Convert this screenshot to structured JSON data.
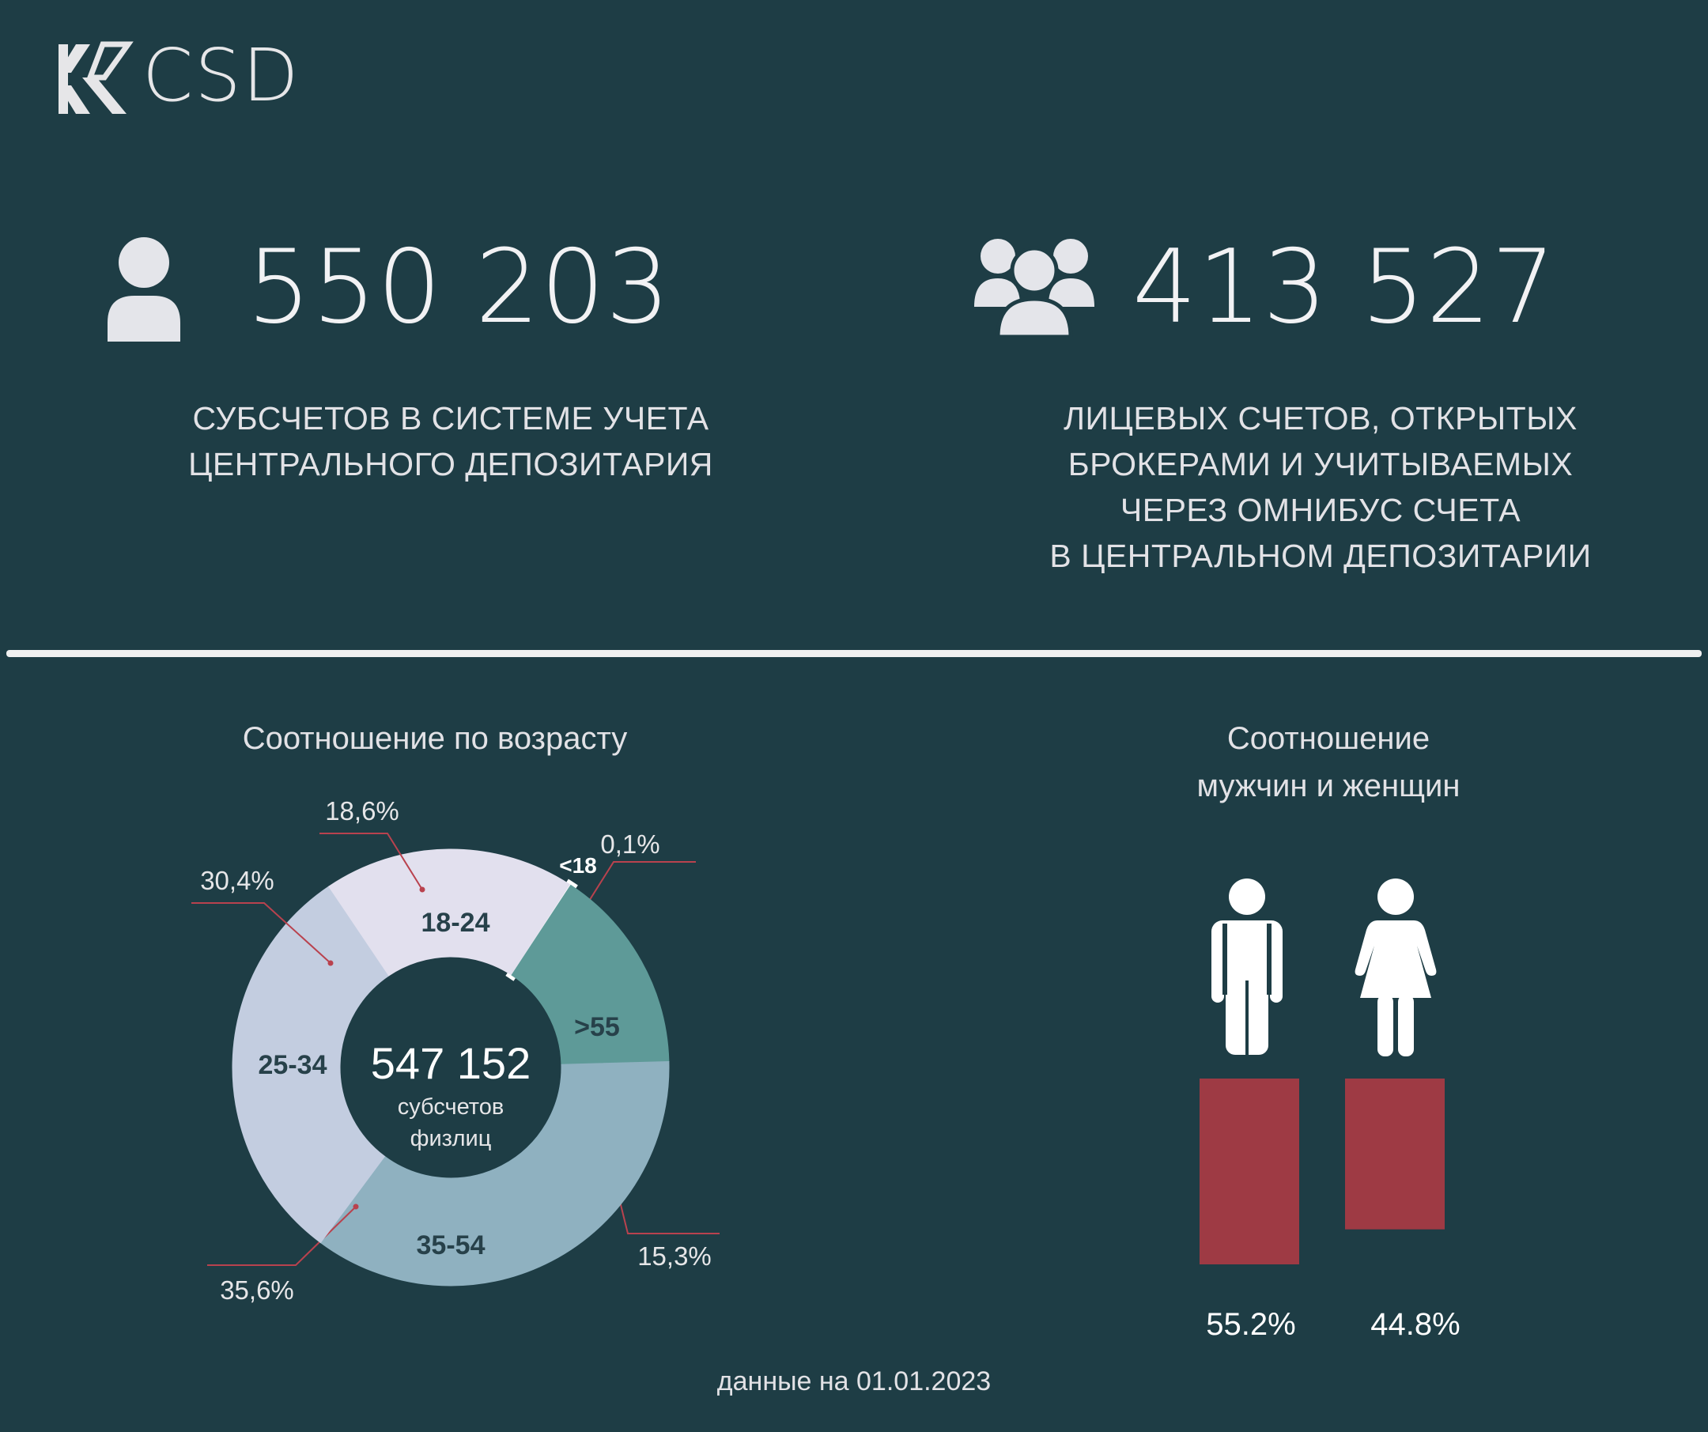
{
  "logo": {
    "text": "CSD"
  },
  "stats": [
    {
      "value": "550 203",
      "description_lines": [
        "СУБСЧЕТОВ В СИСТЕМЕ УЧЕТА",
        "ЦЕНТРАЛЬНОГО ДЕПОЗИТАРИЯ"
      ],
      "icon": "person-icon"
    },
    {
      "value": "413 527",
      "description_lines": [
        "ЛИЦЕВЫХ СЧЕТОВ, ОТКРЫТЫХ",
        "БРОКЕРАМИ И УЧИТЫВАЕМЫХ",
        "ЧЕРЕЗ ОМНИБУС СЧЕТА",
        "В ЦЕНТРАЛЬНОМ ДЕПОЗИТАРИИ"
      ],
      "icon": "group-icon"
    }
  ],
  "footnote": "данные на 01.01.2023",
  "colors": {
    "background": "#1e3d45",
    "bar": "#9e3a44"
  },
  "chart_data": [
    {
      "type": "pie",
      "title": "Соотношение по возрасту",
      "center_value": "547 152",
      "center_label_lines": [
        "субсчетов",
        "физлиц"
      ],
      "slices": [
        {
          "category": "<18",
          "value": 0.1,
          "label": "0,1%",
          "color": "#ffffff"
        },
        {
          "category": ">55",
          "value": 15.3,
          "label": "15,3%",
          "color": "#5e9a98"
        },
        {
          "category": "35-54",
          "value": 35.6,
          "label": "35,6%",
          "color": "#8fb1c0"
        },
        {
          "category": "25-34",
          "value": 30.4,
          "label": "30,4%",
          "color": "#c3cde0"
        },
        {
          "category": "18-24",
          "value": 18.6,
          "label": "18,6%",
          "color": "#e2e0ee"
        }
      ]
    },
    {
      "type": "bar",
      "title_lines": [
        "Соотношение",
        "мужчин и женщин"
      ],
      "categories": [
        "male-icon",
        "female-icon"
      ],
      "values": [
        55.2,
        44.8
      ],
      "labels": [
        "55.2%",
        "44.8%"
      ],
      "color": "#9e3a44"
    }
  ]
}
